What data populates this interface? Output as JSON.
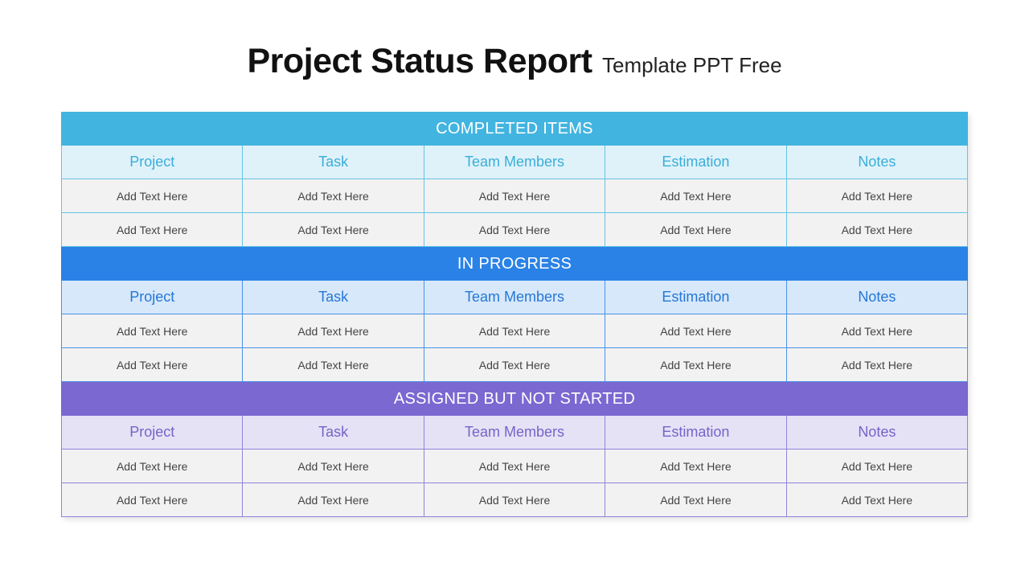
{
  "title": {
    "main": "Project Status Report",
    "sub": "Template PPT Free"
  },
  "columns": [
    "Project",
    "Task",
    "Team Members",
    "Estimation",
    "Notes"
  ],
  "sections": [
    {
      "heading": "COMPLETED ITEMS",
      "color": "#42b4e0",
      "rows": [
        [
          "Add Text Here",
          "Add Text Here",
          "Add Text Here",
          "Add Text Here",
          "Add Text Here"
        ],
        [
          "Add Text Here",
          "Add Text Here",
          "Add Text Here",
          "Add Text Here",
          "Add Text Here"
        ]
      ]
    },
    {
      "heading": "IN PROGRESS",
      "color": "#2a82e6",
      "rows": [
        [
          "Add Text Here",
          "Add Text Here",
          "Add Text Here",
          "Add Text Here",
          "Add Text Here"
        ],
        [
          "Add Text Here",
          "Add Text Here",
          "Add Text Here",
          "Add Text Here",
          "Add Text Here"
        ]
      ]
    },
    {
      "heading": "ASSIGNED BUT NOT STARTED",
      "color": "#7b68d1",
      "rows": [
        [
          "Add Text Here",
          "Add Text Here",
          "Add Text Here",
          "Add Text Here",
          "Add Text Here"
        ],
        [
          "Add Text Here",
          "Add Text Here",
          "Add Text Here",
          "Add Text Here",
          "Add Text Here"
        ]
      ]
    }
  ]
}
